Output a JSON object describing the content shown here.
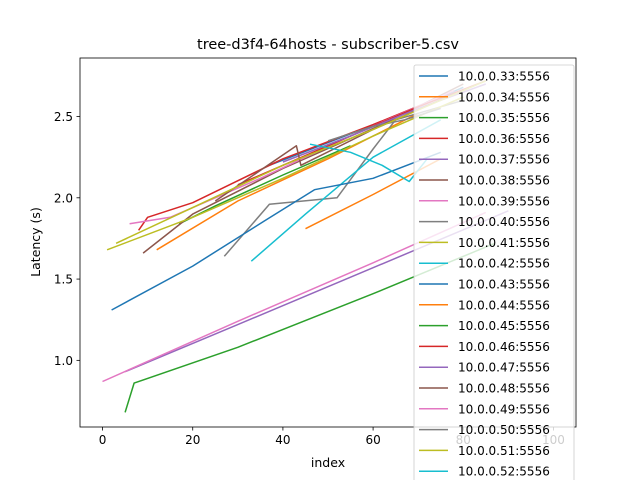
{
  "chart_data": {
    "type": "line",
    "title": "tree-d3f4-64hosts - subscriber-5.csv",
    "xlabel": "index",
    "ylabel": "Latency (s)",
    "xlim": [
      -5,
      105
    ],
    "ylim": [
      0.59,
      2.86
    ],
    "xticks": [
      "0",
      "20",
      "40",
      "60",
      "80",
      "100"
    ],
    "yticks": [
      "1.0",
      "1.5",
      "2.0",
      "2.5"
    ],
    "legend_position": "top-right",
    "grid": false,
    "series": [
      {
        "name": "10.0.0.33:5556",
        "color": "#1f77b4",
        "x": [
          37,
          50,
          65,
          80
        ],
        "y": [
          2.2,
          2.34,
          2.5,
          2.68
        ]
      },
      {
        "name": "10.0.0.34:5556",
        "color": "#ff7f0e",
        "x": [
          12,
          30,
          50,
          70
        ],
        "y": [
          1.68,
          1.98,
          2.24,
          2.52
        ]
      },
      {
        "name": "10.0.0.35:5556",
        "color": "#2ca02c",
        "x": [
          17,
          25,
          40,
          55
        ],
        "y": [
          1.84,
          1.95,
          2.14,
          2.32
        ]
      },
      {
        "name": "10.0.0.36:5556",
        "color": "#d62728",
        "x": [
          8,
          10,
          20,
          40,
          60,
          75
        ],
        "y": [
          1.8,
          1.88,
          1.97,
          2.24,
          2.45,
          2.62
        ]
      },
      {
        "name": "10.0.0.37:5556",
        "color": "#9467bd",
        "x": [
          5,
          30,
          60,
          90
        ],
        "y": [
          0.93,
          1.22,
          1.57,
          1.92
        ]
      },
      {
        "name": "10.0.0.38:5556",
        "color": "#8c564b",
        "x": [
          9,
          20,
          40,
          62,
          80
        ],
        "y": [
          1.66,
          1.9,
          2.18,
          2.45,
          2.7
        ]
      },
      {
        "name": "10.0.0.39:5556",
        "color": "#e377c2",
        "x": [
          6,
          15,
          35,
          55,
          78
        ],
        "y": [
          1.84,
          1.88,
          2.12,
          2.38,
          2.66
        ]
      },
      {
        "name": "10.0.0.40:5556",
        "color": "#7f7f7f",
        "x": [
          27,
          37,
          52,
          60,
          65,
          80
        ],
        "y": [
          1.64,
          1.96,
          2.0,
          2.3,
          2.48,
          2.6
        ]
      },
      {
        "name": "10.0.0.41:5556",
        "color": "#bcbd22",
        "x": [
          1,
          20,
          40,
          60,
          80
        ],
        "y": [
          1.68,
          1.88,
          2.12,
          2.38,
          2.62
        ]
      },
      {
        "name": "10.0.0.42:5556",
        "color": "#17becf",
        "x": [
          33,
          45,
          60,
          75
        ],
        "y": [
          1.61,
          1.9,
          2.25,
          2.48
        ]
      },
      {
        "name": "10.0.0.43:5556",
        "color": "#1f77b4",
        "x": [
          2,
          20,
          36,
          47,
          60,
          75
        ],
        "y": [
          1.31,
          1.58,
          1.86,
          2.05,
          2.12,
          2.28
        ]
      },
      {
        "name": "10.0.0.44:5556",
        "color": "#ff7f0e",
        "x": [
          45,
          60,
          75
        ],
        "y": [
          1.81,
          2.02,
          2.24
        ]
      },
      {
        "name": "10.0.0.45:5556",
        "color": "#2ca02c",
        "x": [
          5,
          7,
          30,
          60,
          87
        ],
        "y": [
          0.68,
          0.86,
          1.08,
          1.41,
          1.72
        ]
      },
      {
        "name": "10.0.0.46:5556",
        "color": "#d62728",
        "x": [
          30,
          50,
          70,
          85
        ],
        "y": [
          2.08,
          2.32,
          2.56,
          2.72
        ]
      },
      {
        "name": "10.0.0.47:5556",
        "color": "#9467bd",
        "x": [
          40,
          55,
          70,
          85
        ],
        "y": [
          2.22,
          2.38,
          2.55,
          2.7
        ]
      },
      {
        "name": "10.0.0.48:5556",
        "color": "#8c564b",
        "x": [
          25,
          43,
          44,
          60,
          78
        ],
        "y": [
          1.98,
          2.32,
          2.2,
          2.42,
          2.64
        ]
      },
      {
        "name": "10.0.0.49:5556",
        "color": "#e377c2",
        "x": [
          0,
          30,
          60,
          85
        ],
        "y": [
          0.87,
          1.24,
          1.6,
          1.91
        ]
      },
      {
        "name": "10.0.0.50:5556",
        "color": "#7f7f7f",
        "x": [
          50,
          60,
          67,
          75
        ],
        "y": [
          2.35,
          2.44,
          2.48,
          2.55
        ]
      },
      {
        "name": "10.0.0.51:5556",
        "color": "#bcbd22",
        "x": [
          3,
          20,
          40,
          60,
          85
        ],
        "y": [
          1.72,
          1.94,
          2.2,
          2.42,
          2.72
        ]
      },
      {
        "name": "10.0.0.52:5556",
        "color": "#17becf",
        "x": [
          46,
          55,
          62,
          68,
          72
        ],
        "y": [
          2.33,
          2.28,
          2.2,
          2.1,
          2.24
        ]
      }
    ]
  }
}
